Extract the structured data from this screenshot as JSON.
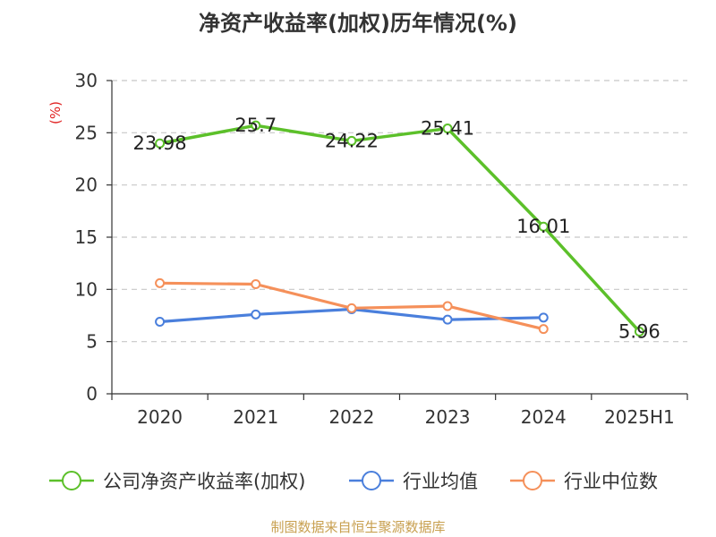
{
  "chart_data": {
    "type": "line",
    "title": "净资产收益率(加权)历年情况(%)",
    "ylabel": "(%)",
    "xlabel": "",
    "categories": [
      "2020",
      "2021",
      "2022",
      "2023",
      "2024",
      "2025H1"
    ],
    "ylim": [
      0,
      30
    ],
    "yticks": [
      0,
      5,
      10,
      15,
      20,
      25,
      30
    ],
    "grid": true,
    "legend_position": "bottom",
    "series": [
      {
        "name": "公司净资产收益率(加权)",
        "color": "#5cc02a",
        "values": [
          23.98,
          25.7,
          24.22,
          25.41,
          16.01,
          5.96
        ],
        "labels": [
          "23.98",
          "25.7",
          "24.22",
          "25.41",
          "16.01",
          "5.96"
        ]
      },
      {
        "name": "行业均值",
        "color": "#4a7fdc",
        "values": [
          6.9,
          7.6,
          8.1,
          7.1,
          7.3,
          null
        ]
      },
      {
        "name": "行业中位数",
        "color": "#f5905a",
        "values": [
          10.6,
          10.5,
          8.2,
          8.4,
          6.2,
          null
        ]
      }
    ]
  },
  "footer": {
    "source": "制图数据来自恒生聚源数据库"
  }
}
